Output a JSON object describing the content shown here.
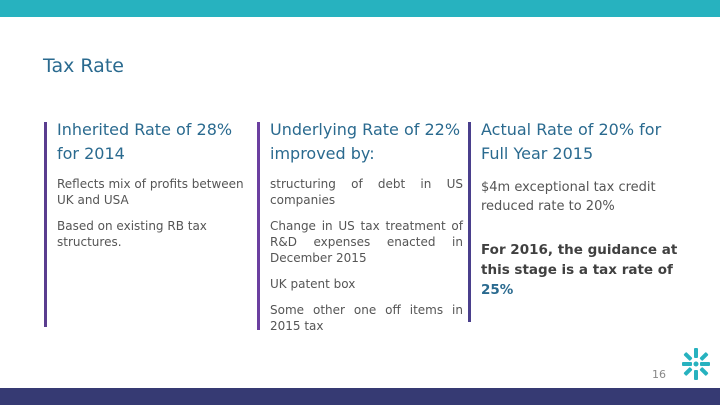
{
  "slide": {
    "title": "Tax Rate",
    "page_number": "16"
  },
  "columns": [
    {
      "heading": "Inherited Rate of 28% for 2014",
      "points": [
        "Reflects mix of profits between UK and USA",
        "Based on existing RB tax structures."
      ]
    },
    {
      "heading": "Underlying Rate of 22% improved by:",
      "points": [
        "structuring of debt in US companies",
        "Change in US tax treatment of R&D expenses enacted in December 2015",
        "UK patent box",
        "Some other one off items in 2015 tax"
      ]
    },
    {
      "heading": "Actual Rate of 20% for Full Year 2015",
      "points": [
        "$4m exceptional tax credit reduced rate to 20%"
      ],
      "guidance_text": "For 2016, the guidance at this stage is a tax rate of",
      "guidance_rate": "25%"
    }
  ],
  "colors": {
    "top_bar": "#27b2bf",
    "bottom_bar": "#363a73",
    "heading": "#2a6a8f"
  }
}
